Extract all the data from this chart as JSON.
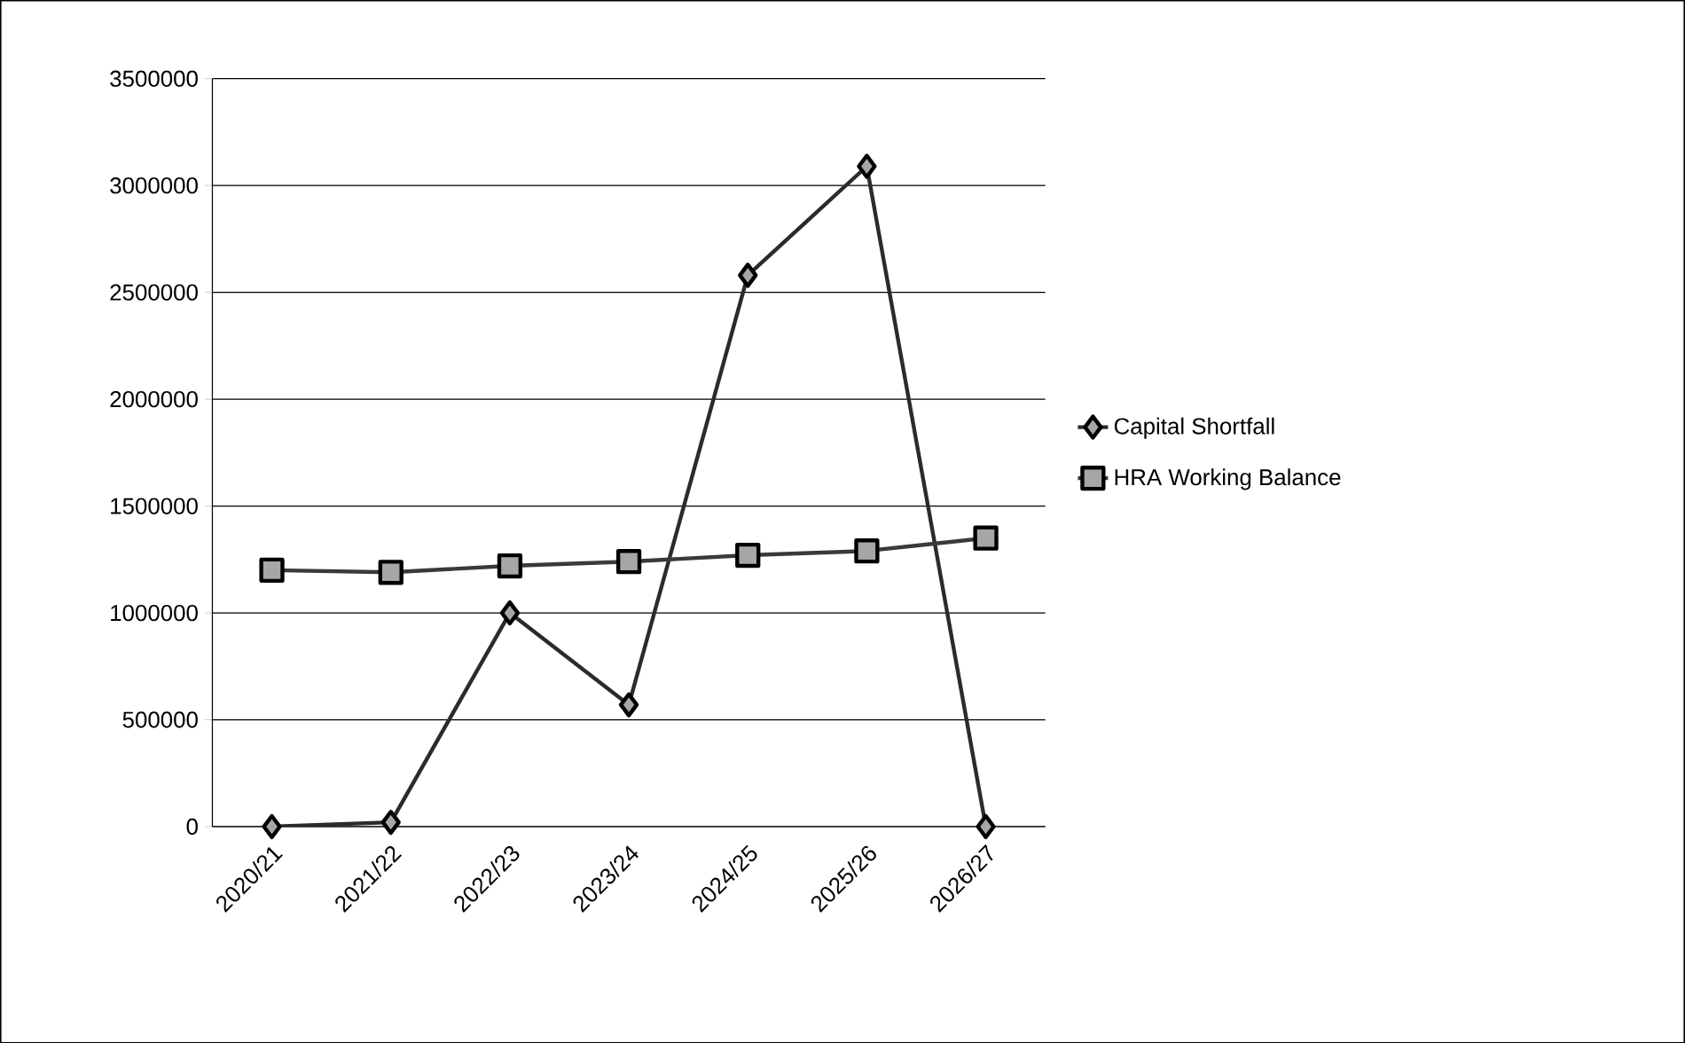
{
  "chart_data": {
    "type": "line",
    "categories": [
      "2020/21",
      "2021/22",
      "2022/23",
      "2023/24",
      "2024/25",
      "2025/26",
      "2026/27"
    ],
    "series": [
      {
        "name": "Capital Shortfall",
        "color": "#2b2b2b",
        "marker": "diamond",
        "values": [
          0,
          20000,
          1000000,
          570000,
          2580000,
          3090000,
          0
        ]
      },
      {
        "name": "HRA Working Balance",
        "color": "#3a3a3a",
        "marker": "square",
        "values": [
          1200000,
          1190000,
          1220000,
          1240000,
          1270000,
          1290000,
          1350000
        ]
      }
    ],
    "ylim": [
      0,
      3500000
    ],
    "yticks": [
      0,
      500000,
      1000000,
      1500000,
      2000000,
      2500000,
      3000000,
      3500000
    ],
    "grid": "y",
    "legend": "right"
  }
}
